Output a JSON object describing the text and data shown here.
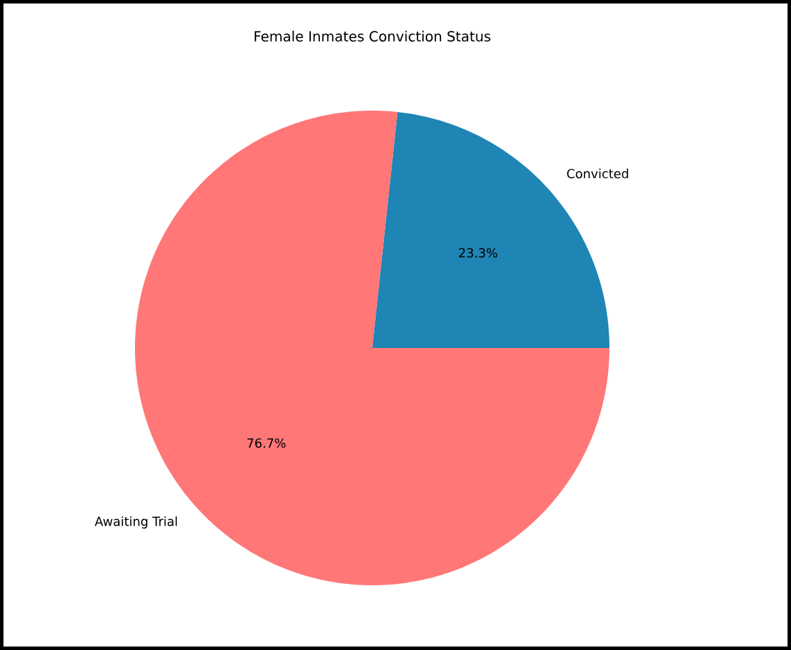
{
  "chart_data": {
    "type": "pie",
    "title": "Female Inmates Conviction Status",
    "categories": [
      "Convicted",
      "Awaiting Trial"
    ],
    "values": [
      23.3,
      76.7
    ],
    "colors": [
      "#1f85b4",
      "#ff7777"
    ],
    "value_labels": [
      "23.3%",
      "76.7%"
    ]
  }
}
